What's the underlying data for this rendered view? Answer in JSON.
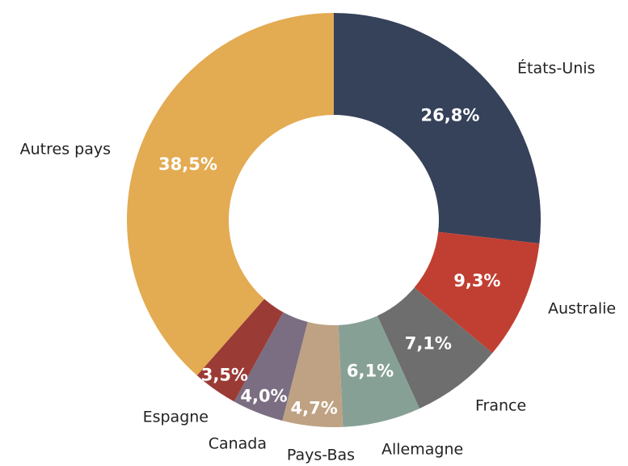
{
  "chart_data": {
    "type": "donut",
    "categories": [
      "États-Unis",
      "Australie",
      "France",
      "Allemagne",
      "Pays-Bas",
      "Canada",
      "Espagne",
      "Autres pays"
    ],
    "values": [
      26.8,
      9.3,
      7.1,
      6.1,
      4.7,
      4.0,
      3.5,
      38.5
    ],
    "value_labels": [
      "26,8%",
      "9,3%",
      "7,1%",
      "6,1%",
      "4,7%",
      "4,0%",
      "3,5%",
      "38,5%"
    ],
    "colors": [
      "#36415a",
      "#c13f32",
      "#6e6e6e",
      "#87a096",
      "#bfa283",
      "#7b6e82",
      "#9b3b35",
      "#e3ab52"
    ]
  }
}
